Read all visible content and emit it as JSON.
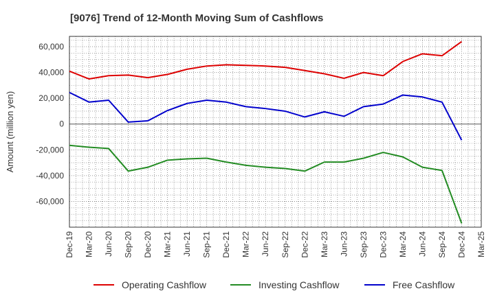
{
  "chart_data": {
    "type": "line",
    "title": "[9076]  Trend of 12-Month Moving Sum of Cashflows",
    "xlabel": "",
    "ylabel": "Amount (million yen)",
    "ylim": [
      -80000,
      68000
    ],
    "yticks": [
      60000,
      40000,
      20000,
      0,
      -20000,
      -40000,
      -60000
    ],
    "ytick_labels": [
      "60,000",
      "40,000",
      "20,000",
      "0",
      "-20,000",
      "-40,000",
      "-60,000"
    ],
    "x": [
      "Dec-19",
      "Mar-20",
      "Jun-20",
      "Sep-20",
      "Dec-20",
      "Mar-21",
      "Jun-21",
      "Sep-21",
      "Dec-21",
      "Mar-22",
      "Jun-22",
      "Sep-22",
      "Dec-22",
      "Mar-23",
      "Jun-23",
      "Sep-23",
      "Dec-23",
      "Mar-24",
      "Jun-24",
      "Sep-24",
      "Dec-24",
      "Mar-25"
    ],
    "grid": true,
    "legend_position": "bottom",
    "series": [
      {
        "name": "Operating Cashflow",
        "color": "#dd0000",
        "values": [
          41000,
          35000,
          37500,
          38000,
          36000,
          38500,
          42500,
          45000,
          46000,
          45500,
          45000,
          44000,
          41500,
          39000,
          35500,
          40000,
          37500,
          48500,
          54500,
          53000,
          64000,
          null
        ]
      },
      {
        "name": "Investing Cashflow",
        "color": "#228b22",
        "values": [
          -16500,
          -18000,
          -19000,
          -36500,
          -33500,
          -28000,
          -27000,
          -26500,
          -29500,
          -32000,
          -33500,
          -34500,
          -36500,
          -29500,
          -29500,
          -26500,
          -22000,
          -25500,
          -33500,
          -36000,
          -77000,
          null
        ]
      },
      {
        "name": "Free Cashflow",
        "color": "#0000cc",
        "values": [
          24500,
          17000,
          18500,
          1500,
          2500,
          10500,
          16000,
          18500,
          17000,
          13500,
          12000,
          10000,
          5500,
          9500,
          6000,
          13500,
          15500,
          22500,
          21000,
          17000,
          -12500,
          null
        ]
      }
    ]
  }
}
